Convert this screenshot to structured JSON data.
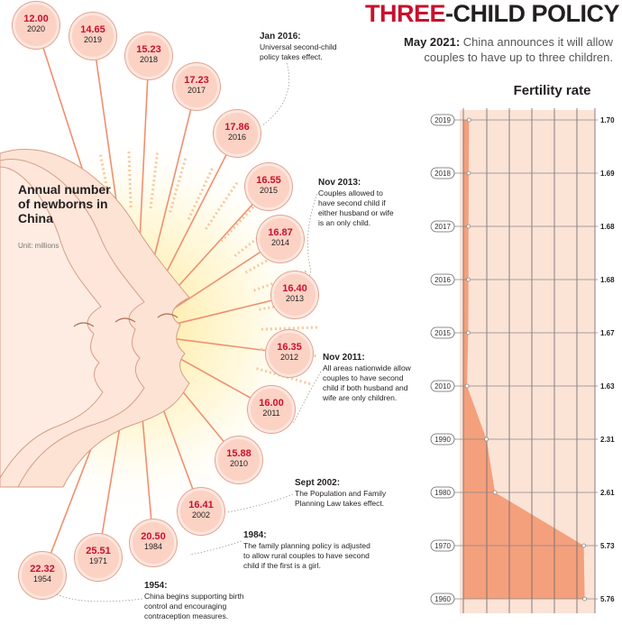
{
  "headline": {
    "part1": "THREE",
    "part2": "-CHILD POLICY"
  },
  "deck": {
    "date": "May 2021:",
    "text": "China announces it will allow couples to have up to three children."
  },
  "births": {
    "title": "Annual number of newborns in China",
    "unit": "Unit: millions"
  },
  "fertility_title": "Fertility rate",
  "notes": [
    {
      "date": "Jan 2016:",
      "text": "Universal second-child policy takes effect."
    },
    {
      "date": "Nov 2013:",
      "text": "Couples allowed to have second child if either husband or wife is an only child."
    },
    {
      "date": "Nov 2011:",
      "text": "All areas nationwide allow couples to have second child if both husband and wife are only children."
    },
    {
      "date": "Sept 2002:",
      "text": "The Population and Family Planning Law takes effect."
    },
    {
      "date": "1984:",
      "text": "The family planning policy is adjusted to allow rural couples to have second child if the first is a girl."
    },
    {
      "date": "1954:",
      "text": "China begins supporting birth control and encouraging contraception measures."
    }
  ],
  "colors": {
    "accent_red": "#c8102e",
    "bubble": "#fbd2c4",
    "fertility_fill": "#f4a07c"
  },
  "chart_data": [
    {
      "type": "bar",
      "title": "Annual number of newborns in China",
      "unit": "Unit: millions",
      "categories": [
        "2020",
        "2019",
        "2018",
        "2017",
        "2016",
        "2015",
        "2014",
        "2013",
        "2012",
        "2011",
        "2010",
        "2002",
        "1984",
        "1971",
        "1954"
      ],
      "values": [
        12.0,
        14.65,
        15.23,
        17.23,
        17.86,
        16.55,
        16.87,
        16.4,
        16.35,
        16.0,
        15.88,
        16.41,
        20.5,
        25.51,
        22.32
      ],
      "value_labels": [
        "12.00",
        "14.65",
        "15.23",
        "17.23",
        "17.86",
        "16.55",
        "16.87",
        "16.40",
        "16.35",
        "16.00",
        "15.88",
        "16.41",
        "20.50",
        "25.51",
        "22.32"
      ]
    },
    {
      "type": "area",
      "title": "Fertility rate",
      "categories": [
        "2019",
        "2018",
        "2017",
        "2016",
        "2015",
        "2010",
        "1990",
        "1980",
        "1970",
        "1960"
      ],
      "values": [
        1.7,
        1.69,
        1.68,
        1.68,
        1.67,
        1.63,
        2.31,
        2.61,
        5.73,
        5.76
      ],
      "value_labels": [
        "1.70",
        "1.69",
        "1.68",
        "1.68",
        "1.67",
        "1.63",
        "2.31",
        "2.61",
        "5.73",
        "5.76"
      ],
      "grid": true
    }
  ]
}
